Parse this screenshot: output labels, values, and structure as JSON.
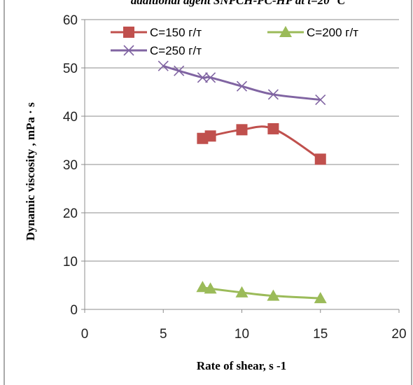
{
  "chart_data": {
    "type": "line",
    "title": "additional agent SNPCH-PC-HP at t=20 °C",
    "xlabel": "Rate of shear, s -1",
    "ylabel": "Dynamic viscosity , mPa · s",
    "xlim": [
      0,
      20
    ],
    "ylim": [
      0,
      60
    ],
    "x_ticks": [
      0,
      5,
      10,
      15,
      20
    ],
    "y_ticks": [
      0,
      10,
      20,
      30,
      40,
      50,
      60
    ],
    "grid": "horizontal",
    "legend_position": "top",
    "series": [
      {
        "name": "C=150 г/т",
        "color": "#C0504D",
        "marker": "square",
        "x": [
          7.5,
          8,
          10,
          12,
          15
        ],
        "y": [
          35.4,
          35.9,
          37.2,
          37.4,
          31.1
        ]
      },
      {
        "name": "C=200 г/т",
        "color": "#9BBB59",
        "marker": "triangle",
        "x": [
          7.5,
          8,
          10,
          12,
          15
        ],
        "y": [
          4.6,
          4.3,
          3.5,
          2.8,
          2.3
        ]
      },
      {
        "name": "C=250 г/т",
        "color": "#8064A2",
        "marker": "cross",
        "x": [
          5,
          6,
          7.5,
          8,
          10,
          12,
          15
        ],
        "y": [
          50.4,
          49.4,
          48.0,
          48.0,
          46.2,
          44.5,
          43.4
        ]
      }
    ]
  }
}
